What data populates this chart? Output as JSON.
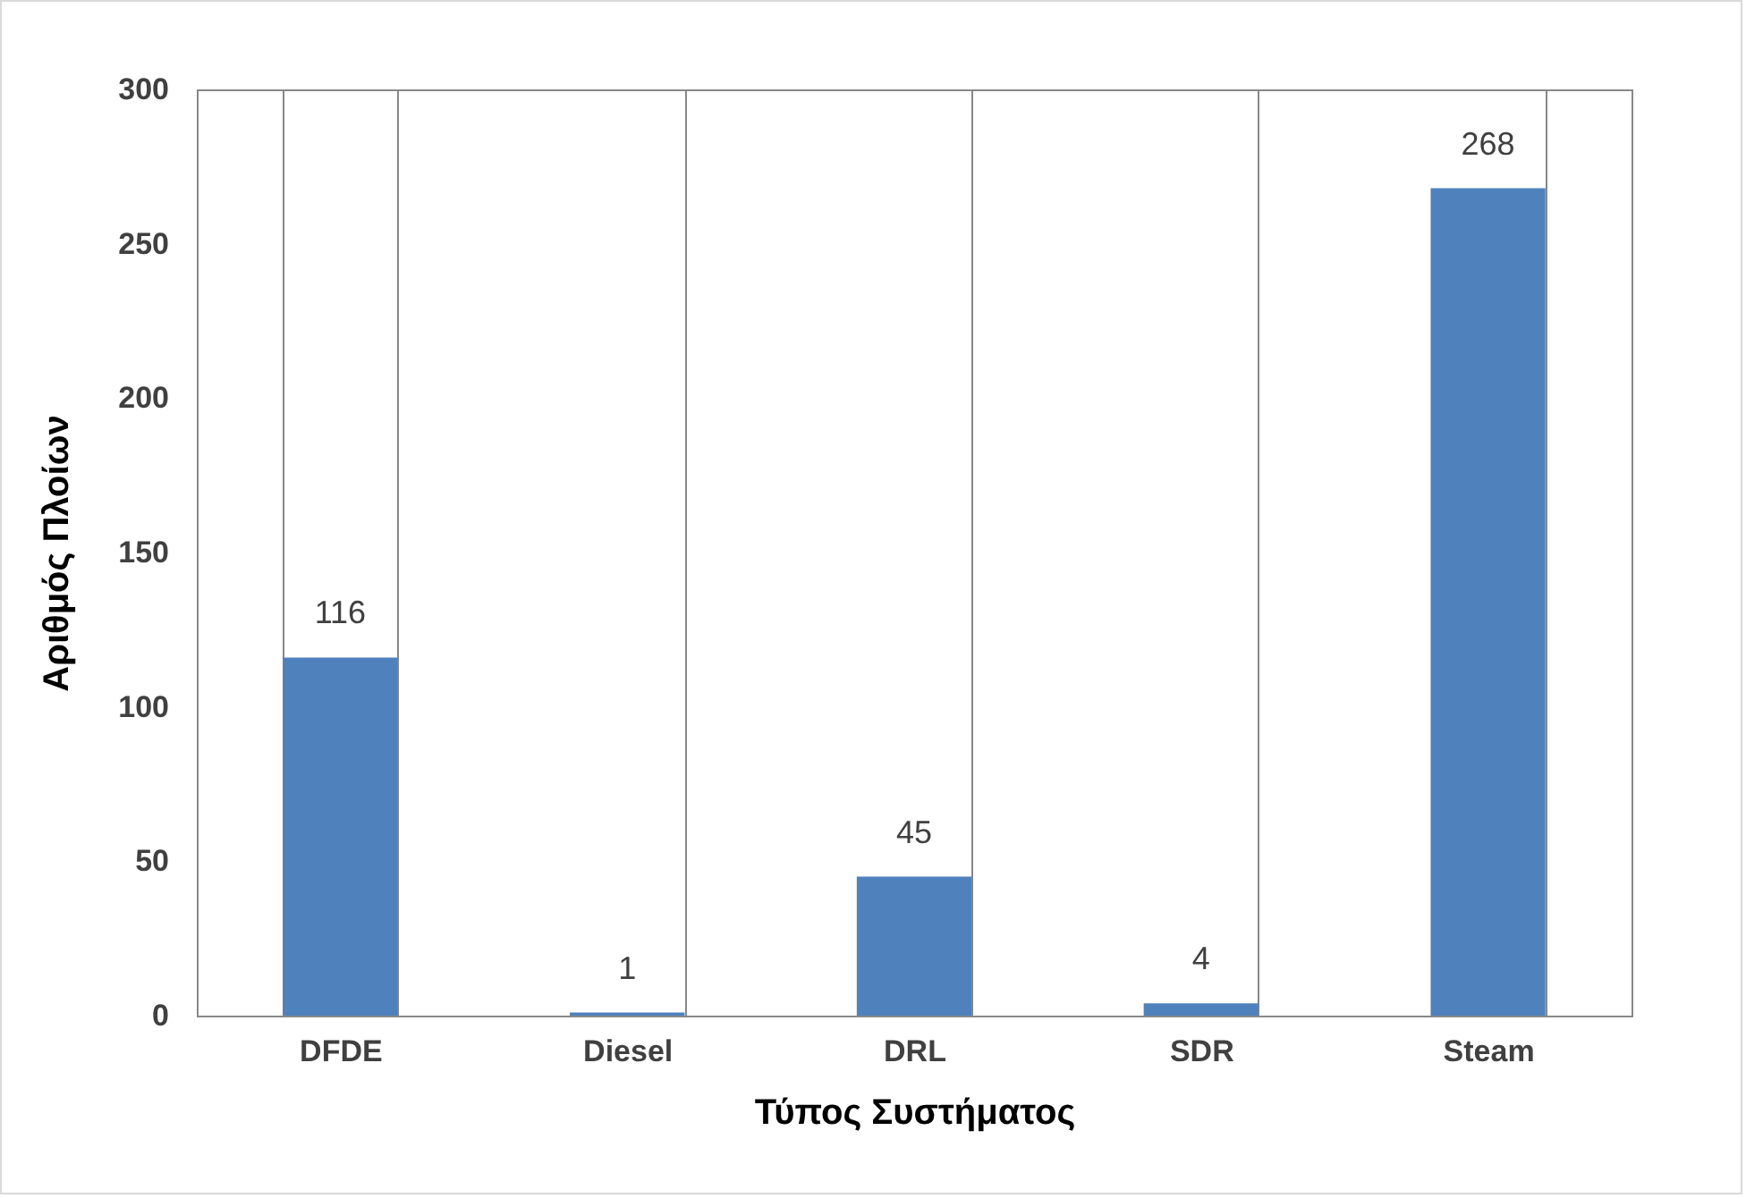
{
  "chart_data": {
    "type": "bar",
    "xlabel": "Τύπος Συστήματος",
    "ylabel": "Αριθμός Πλοίων",
    "categories": [
      "DFDE",
      "Diesel",
      "DRL",
      "SDR",
      "Steam"
    ],
    "values": [
      116,
      1,
      45,
      4,
      268
    ],
    "color": "#4f81bd",
    "ylim": [
      0,
      300
    ],
    "yticks": [
      0,
      50,
      100,
      150,
      200,
      250,
      300
    ],
    "grid": "x",
    "data_labels": true
  }
}
